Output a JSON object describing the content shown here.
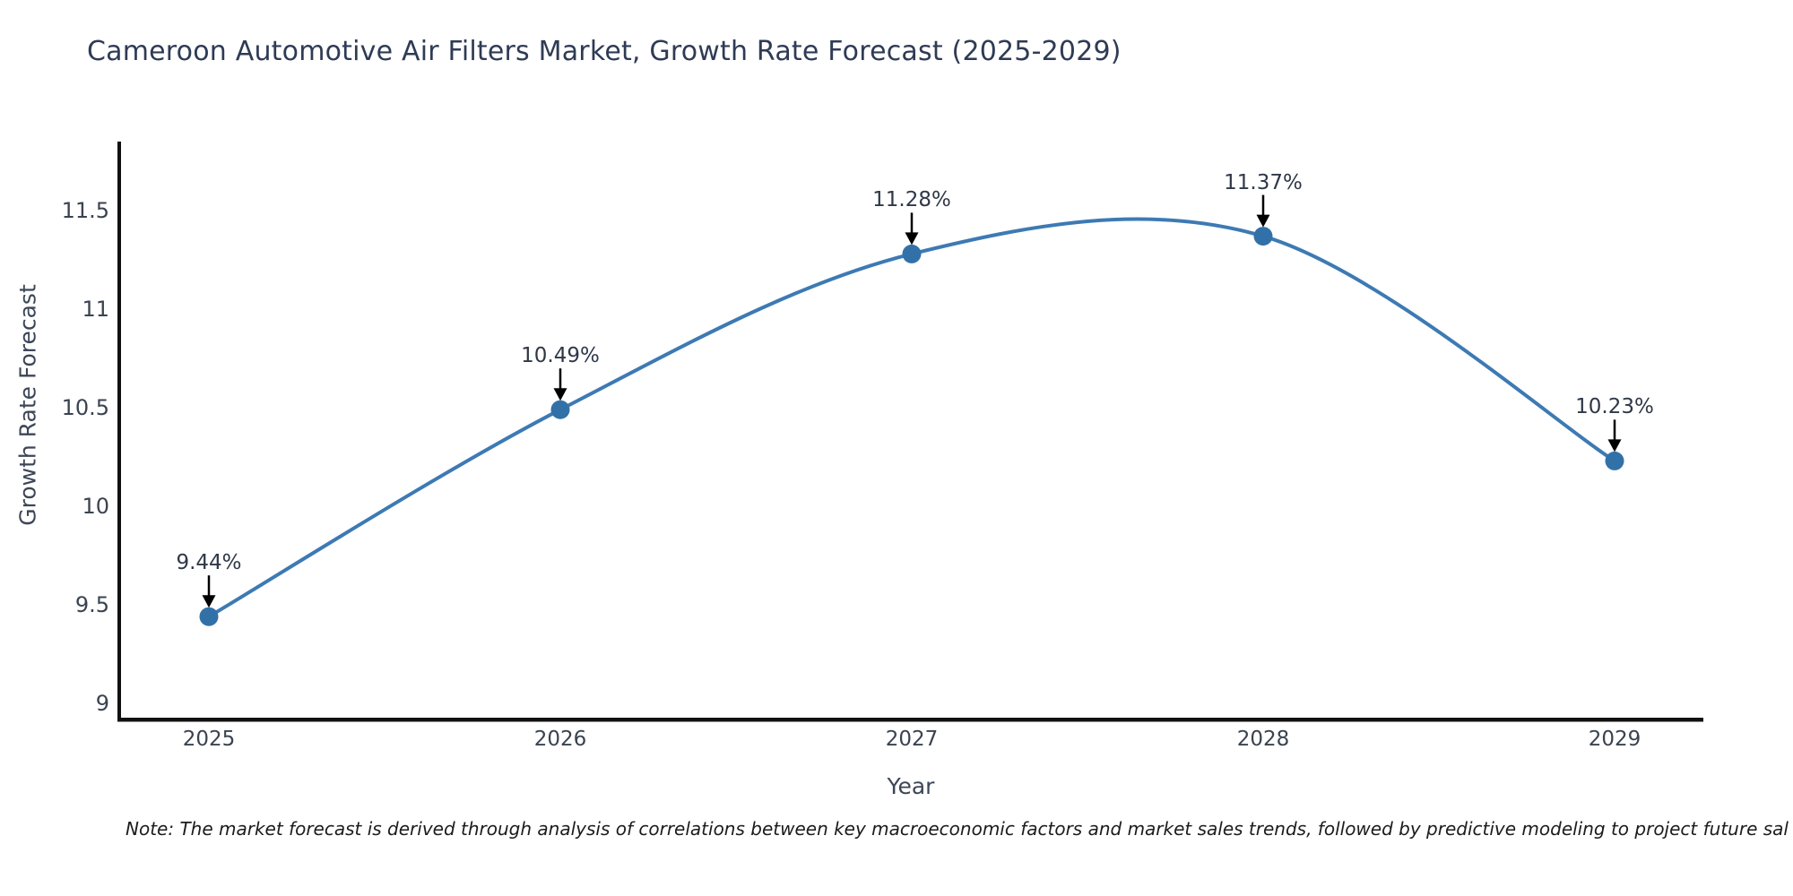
{
  "title": "Cameroon Automotive Air Filters Market, Growth Rate Forecast (2025-2029)",
  "note": "Note: The market forecast is derived through analysis of correlations between key macroeconomic factors and market sales trends, followed by predictive modeling to project future sal",
  "chart_data": {
    "type": "line",
    "title": "Cameroon Automotive Air Filters Market, Growth Rate Forecast (2025-2029)",
    "xlabel": "Year",
    "ylabel": "Growth Rate Forecast",
    "x": [
      2025,
      2026,
      2027,
      2028,
      2029
    ],
    "values": [
      9.44,
      10.49,
      11.28,
      11.37,
      10.23
    ],
    "point_labels": [
      "9.44%",
      "10.49%",
      "11.28%",
      "11.37%",
      "10.23%"
    ],
    "yticks": [
      9,
      9.5,
      10,
      10.5,
      11,
      11.5
    ],
    "ylim": [
      8.9,
      11.85
    ],
    "grid": false,
    "legend_position": "none",
    "smooth_spline": true,
    "line_color": "#3d7ab4",
    "marker_color": "#3271a8",
    "arrow_color": "#000000",
    "spine_color": "#111111"
  }
}
